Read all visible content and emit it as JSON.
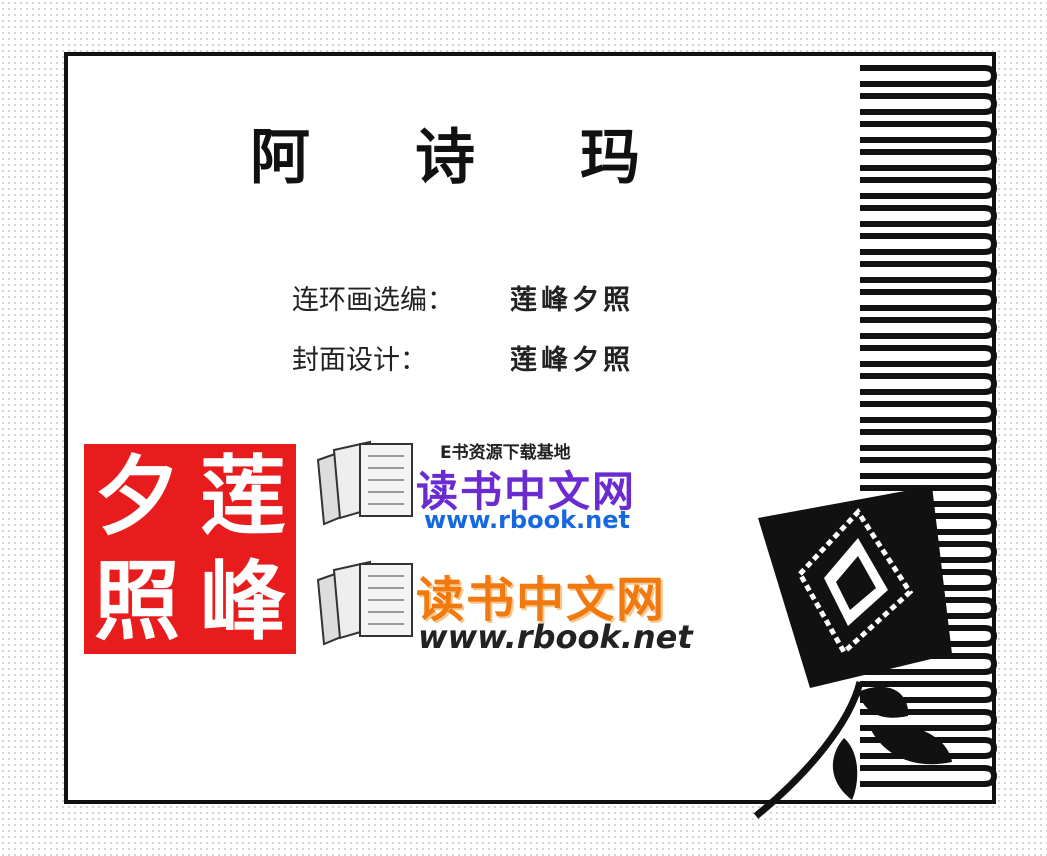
{
  "title": "阿 诗 玛",
  "title_chars": [
    "阿",
    "诗",
    "玛"
  ],
  "credits": [
    {
      "label": "连环画选编：",
      "name": "莲峰夕照"
    },
    {
      "label": "封面设计：",
      "name": "莲峰夕照"
    }
  ],
  "seal": {
    "chars": [
      "莲",
      "夕",
      "峰",
      "照"
    ],
    "color": "#e81c1c"
  },
  "logos": {
    "top": {
      "tagline": "E书资源下载基地",
      "brand": "读书中文网",
      "url": "www.rbook.net",
      "brand_color": "#6a2bd0",
      "url_color": "#1668e0"
    },
    "bottom": {
      "brand": "读书中文网",
      "url": "www.rbook.net",
      "brand_color": "#f07a10"
    }
  },
  "icons": [
    "book-stack-icon",
    "book-stack-icon",
    "flower-illustration",
    "stripe-border-pattern"
  ]
}
